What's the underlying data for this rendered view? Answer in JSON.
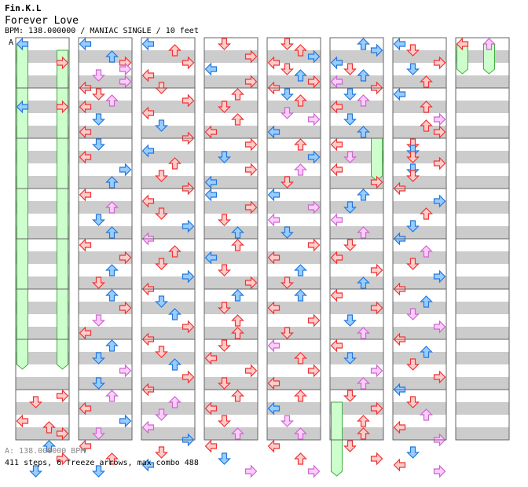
{
  "header": {
    "artist": "Fin.K.L",
    "title": "Forever Love",
    "info": "BPM: 138.000000 / MANIAC SINGLE / 10 feet"
  },
  "bpm_marker": "A",
  "footer": {
    "bpm_line": "A: 138.000000 BPM",
    "stats": "411 steps, 6 freeze arrows, max combo 488"
  },
  "colors": {
    "band_dark": "#cccccc",
    "band_light": "#ffffff",
    "red_fill": "#ffcccc",
    "red_line": "#ee3333",
    "blue_fill": "#99ccff",
    "blue_line": "#2277dd",
    "pink_fill": "#ffccff",
    "pink_line": "#cc66cc",
    "freeze_fill": "#ccffcc",
    "freeze_line": "#44aa44"
  },
  "arrows": [
    [
      0,
      1,
      0,
      "b"
    ],
    [
      0,
      4,
      3,
      "r"
    ],
    [
      0,
      11,
      0,
      "b"
    ],
    [
      0,
      11,
      3,
      "r"
    ],
    [
      0,
      57,
      3,
      "r"
    ],
    [
      0,
      58,
      1,
      "r"
    ],
    [
      0,
      61,
      0,
      "r"
    ],
    [
      0,
      62,
      2,
      "r"
    ],
    [
      0,
      63,
      3,
      "r"
    ],
    [
      0,
      65,
      2,
      "b"
    ],
    [
      0,
      67,
      3,
      "r"
    ],
    [
      0,
      69,
      1,
      "b"
    ],
    [
      1,
      1,
      0,
      "b"
    ],
    [
      1,
      3,
      2,
      "b"
    ],
    [
      1,
      4,
      3,
      "r"
    ],
    [
      1,
      5,
      3,
      "p"
    ],
    [
      1,
      6,
      1,
      "p"
    ],
    [
      1,
      7,
      3,
      "p"
    ],
    [
      1,
      8,
      0,
      "r"
    ],
    [
      1,
      9,
      1,
      "r"
    ],
    [
      1,
      10,
      2,
      "p"
    ],
    [
      1,
      11,
      0,
      "r"
    ],
    [
      1,
      13,
      1,
      "b"
    ],
    [
      1,
      15,
      0,
      "r"
    ],
    [
      1,
      17,
      1,
      "b"
    ],
    [
      1,
      19,
      0,
      "r"
    ],
    [
      1,
      21,
      3,
      "b"
    ],
    [
      1,
      23,
      2,
      "b"
    ],
    [
      1,
      25,
      0,
      "r"
    ],
    [
      1,
      27,
      2,
      "p"
    ],
    [
      1,
      29,
      1,
      "b"
    ],
    [
      1,
      31,
      2,
      "b"
    ],
    [
      1,
      33,
      0,
      "r"
    ],
    [
      1,
      35,
      3,
      "r"
    ],
    [
      1,
      37,
      2,
      "b"
    ],
    [
      1,
      39,
      1,
      "r"
    ],
    [
      1,
      41,
      2,
      "b"
    ],
    [
      1,
      43,
      3,
      "r"
    ],
    [
      1,
      45,
      1,
      "p"
    ],
    [
      1,
      47,
      0,
      "r"
    ],
    [
      1,
      49,
      2,
      "b"
    ],
    [
      1,
      51,
      1,
      "b"
    ],
    [
      1,
      53,
      3,
      "p"
    ],
    [
      1,
      55,
      1,
      "b"
    ],
    [
      1,
      57,
      2,
      "p"
    ],
    [
      1,
      59,
      0,
      "r"
    ],
    [
      1,
      61,
      3,
      "b"
    ],
    [
      1,
      63,
      1,
      "p"
    ],
    [
      1,
      65,
      0,
      "r"
    ],
    [
      1,
      67,
      2,
      "r"
    ],
    [
      1,
      69,
      1,
      "b"
    ],
    [
      2,
      1,
      0,
      "b"
    ],
    [
      2,
      2,
      2,
      "r"
    ],
    [
      2,
      4,
      3,
      "r"
    ],
    [
      2,
      6,
      0,
      "r"
    ],
    [
      2,
      8,
      1,
      "r"
    ],
    [
      2,
      10,
      3,
      "r"
    ],
    [
      2,
      12,
      0,
      "r"
    ],
    [
      2,
      14,
      1,
      "b"
    ],
    [
      2,
      16,
      3,
      "r"
    ],
    [
      2,
      18,
      0,
      "b"
    ],
    [
      2,
      20,
      2,
      "r"
    ],
    [
      2,
      22,
      1,
      "r"
    ],
    [
      2,
      24,
      3,
      "r"
    ],
    [
      2,
      26,
      0,
      "r"
    ],
    [
      2,
      28,
      1,
      "r"
    ],
    [
      2,
      30,
      3,
      "b"
    ],
    [
      2,
      32,
      0,
      "p"
    ],
    [
      2,
      34,
      2,
      "r"
    ],
    [
      2,
      36,
      1,
      "r"
    ],
    [
      2,
      38,
      3,
      "b"
    ],
    [
      2,
      40,
      0,
      "r"
    ],
    [
      2,
      42,
      1,
      "b"
    ],
    [
      2,
      44,
      2,
      "b"
    ],
    [
      2,
      46,
      3,
      "r"
    ],
    [
      2,
      48,
      0,
      "r"
    ],
    [
      2,
      50,
      1,
      "r"
    ],
    [
      2,
      52,
      2,
      "b"
    ],
    [
      2,
      54,
      3,
      "r"
    ],
    [
      2,
      56,
      0,
      "r"
    ],
    [
      2,
      58,
      2,
      "p"
    ],
    [
      2,
      60,
      1,
      "p"
    ],
    [
      2,
      62,
      0,
      "p"
    ],
    [
      2,
      64,
      3,
      "b"
    ],
    [
      2,
      66,
      1,
      "r"
    ],
    [
      2,
      68,
      0,
      "b"
    ],
    [
      3,
      1,
      1,
      "r"
    ],
    [
      3,
      3,
      3,
      "r"
    ],
    [
      3,
      5,
      0,
      "b"
    ],
    [
      3,
      7,
      3,
      "r"
    ],
    [
      3,
      9,
      2,
      "r"
    ],
    [
      3,
      11,
      1,
      "r"
    ],
    [
      3,
      13,
      2,
      "r"
    ],
    [
      3,
      15,
      0,
      "r"
    ],
    [
      3,
      17,
      3,
      "r"
    ],
    [
      3,
      19,
      1,
      "b"
    ],
    [
      3,
      21,
      3,
      "r"
    ],
    [
      3,
      23,
      0,
      "b"
    ],
    [
      3,
      25,
      0,
      "b"
    ],
    [
      3,
      27,
      3,
      "r"
    ],
    [
      3,
      29,
      1,
      "r"
    ],
    [
      3,
      31,
      2,
      "b"
    ],
    [
      3,
      33,
      2,
      "r"
    ],
    [
      3,
      35,
      0,
      "b"
    ],
    [
      3,
      37,
      1,
      "r"
    ],
    [
      3,
      39,
      3,
      "r"
    ],
    [
      3,
      41,
      2,
      "b"
    ],
    [
      3,
      43,
      1,
      "r"
    ],
    [
      3,
      45,
      2,
      "r"
    ],
    [
      3,
      47,
      2,
      "r"
    ],
    [
      3,
      49,
      1,
      "r"
    ],
    [
      3,
      51,
      0,
      "r"
    ],
    [
      3,
      53,
      3,
      "r"
    ],
    [
      3,
      55,
      1,
      "r"
    ],
    [
      3,
      57,
      2,
      "r"
    ],
    [
      3,
      59,
      0,
      "r"
    ],
    [
      3,
      61,
      1,
      "r"
    ],
    [
      3,
      63,
      2,
      "p"
    ],
    [
      3,
      65,
      0,
      "r"
    ],
    [
      3,
      67,
      1,
      "b"
    ],
    [
      3,
      69,
      3,
      "p"
    ],
    [
      4,
      1,
      1,
      "r"
    ],
    [
      4,
      2,
      2,
      "r"
    ],
    [
      4,
      3,
      3,
      "b"
    ],
    [
      4,
      4,
      0,
      "r"
    ],
    [
      4,
      5,
      1,
      "r"
    ],
    [
      4,
      6,
      2,
      "b"
    ],
    [
      4,
      7,
      3,
      "r"
    ],
    [
      4,
      8,
      0,
      "r"
    ],
    [
      4,
      9,
      1,
      "b"
    ],
    [
      4,
      10,
      2,
      "r"
    ],
    [
      4,
      12,
      1,
      "p"
    ],
    [
      4,
      13,
      3,
      "p"
    ],
    [
      4,
      15,
      0,
      "b"
    ],
    [
      4,
      17,
      2,
      "r"
    ],
    [
      4,
      19,
      3,
      "b"
    ],
    [
      4,
      21,
      2,
      "p"
    ],
    [
      4,
      23,
      1,
      "r"
    ],
    [
      4,
      25,
      0,
      "b"
    ],
    [
      4,
      27,
      3,
      "p"
    ],
    [
      4,
      29,
      0,
      "p"
    ],
    [
      4,
      31,
      1,
      "b"
    ],
    [
      4,
      33,
      3,
      "r"
    ],
    [
      4,
      35,
      0,
      "r"
    ],
    [
      4,
      37,
      2,
      "b"
    ],
    [
      4,
      39,
      1,
      "r"
    ],
    [
      4,
      41,
      2,
      "b"
    ],
    [
      4,
      43,
      0,
      "r"
    ],
    [
      4,
      45,
      3,
      "r"
    ],
    [
      4,
      47,
      1,
      "r"
    ],
    [
      4,
      49,
      0,
      "p"
    ],
    [
      4,
      51,
      2,
      "r"
    ],
    [
      4,
      53,
      3,
      "r"
    ],
    [
      4,
      55,
      0,
      "r"
    ],
    [
      4,
      57,
      2,
      "r"
    ],
    [
      4,
      59,
      0,
      "b"
    ],
    [
      4,
      61,
      1,
      "p"
    ],
    [
      4,
      63,
      2,
      "p"
    ],
    [
      4,
      65,
      0,
      "r"
    ],
    [
      4,
      67,
      2,
      "r"
    ],
    [
      4,
      69,
      3,
      "p"
    ],
    [
      5,
      1,
      2,
      "b"
    ],
    [
      5,
      2,
      3,
      "b"
    ],
    [
      5,
      4,
      0,
      "b"
    ],
    [
      5,
      5,
      1,
      "r"
    ],
    [
      5,
      6,
      2,
      "b"
    ],
    [
      5,
      7,
      0,
      "p"
    ],
    [
      5,
      8,
      3,
      "r"
    ],
    [
      5,
      9,
      1,
      "b"
    ],
    [
      5,
      10,
      2,
      "p"
    ],
    [
      5,
      11,
      0,
      "r"
    ],
    [
      5,
      13,
      1,
      "b"
    ],
    [
      5,
      15,
      2,
      "b"
    ],
    [
      5,
      17,
      0,
      "r"
    ],
    [
      5,
      19,
      1,
      "p"
    ],
    [
      5,
      21,
      0,
      "r"
    ],
    [
      5,
      23,
      3,
      "r"
    ],
    [
      5,
      25,
      2,
      "b"
    ],
    [
      5,
      27,
      1,
      "b"
    ],
    [
      5,
      29,
      0,
      "p"
    ],
    [
      5,
      31,
      2,
      "p"
    ],
    [
      5,
      33,
      1,
      "r"
    ],
    [
      5,
      35,
      0,
      "r"
    ],
    [
      5,
      37,
      3,
      "r"
    ],
    [
      5,
      39,
      2,
      "b"
    ],
    [
      5,
      41,
      0,
      "r"
    ],
    [
      5,
      43,
      3,
      "r"
    ],
    [
      5,
      45,
      1,
      "b"
    ],
    [
      5,
      47,
      2,
      "p"
    ],
    [
      5,
      49,
      0,
      "r"
    ],
    [
      5,
      51,
      1,
      "b"
    ],
    [
      5,
      53,
      3,
      "p"
    ],
    [
      5,
      55,
      2,
      "p"
    ],
    [
      5,
      57,
      1,
      "r"
    ],
    [
      5,
      59,
      3,
      "r"
    ],
    [
      5,
      61,
      2,
      "r"
    ],
    [
      5,
      63,
      2,
      "r"
    ],
    [
      5,
      65,
      1,
      "r"
    ],
    [
      5,
      67,
      3,
      "r"
    ],
    [
      6,
      1,
      0,
      "b"
    ],
    [
      6,
      2,
      1,
      "r"
    ],
    [
      6,
      4,
      3,
      "r"
    ],
    [
      6,
      5,
      1,
      "b"
    ],
    [
      6,
      7,
      2,
      "r"
    ],
    [
      6,
      9,
      0,
      "b"
    ],
    [
      6,
      11,
      2,
      "r"
    ],
    [
      6,
      13,
      3,
      "p"
    ],
    [
      6,
      14,
      2,
      "r"
    ],
    [
      6,
      15,
      3,
      "r"
    ],
    [
      6,
      17,
      1,
      "r"
    ],
    [
      6,
      18,
      1,
      "b"
    ],
    [
      6,
      19,
      1,
      "r"
    ],
    [
      6,
      20,
      3,
      "r"
    ],
    [
      6,
      21,
      1,
      "b"
    ],
    [
      6,
      22,
      1,
      "r"
    ],
    [
      6,
      24,
      0,
      "r"
    ],
    [
      6,
      26,
      3,
      "b"
    ],
    [
      6,
      28,
      2,
      "r"
    ],
    [
      6,
      30,
      1,
      "b"
    ],
    [
      6,
      32,
      0,
      "b"
    ],
    [
      6,
      34,
      2,
      "p"
    ],
    [
      6,
      36,
      1,
      "r"
    ],
    [
      6,
      38,
      3,
      "b"
    ],
    [
      6,
      40,
      0,
      "r"
    ],
    [
      6,
      42,
      2,
      "b"
    ],
    [
      6,
      44,
      1,
      "p"
    ],
    [
      6,
      46,
      3,
      "p"
    ],
    [
      6,
      48,
      0,
      "r"
    ],
    [
      6,
      50,
      2,
      "b"
    ],
    [
      6,
      52,
      1,
      "r"
    ],
    [
      6,
      54,
      3,
      "r"
    ],
    [
      6,
      56,
      0,
      "b"
    ],
    [
      6,
      58,
      1,
      "r"
    ],
    [
      6,
      60,
      2,
      "p"
    ],
    [
      6,
      62,
      0,
      "r"
    ],
    [
      6,
      64,
      3,
      "p"
    ],
    [
      6,
      66,
      1,
      "b"
    ],
    [
      6,
      68,
      0,
      "r"
    ],
    [
      6,
      69,
      3,
      "p"
    ],
    [
      7,
      1,
      0,
      "r"
    ],
    [
      7,
      1,
      2,
      "p"
    ]
  ],
  "freezes": [
    [
      0,
      1,
      52,
      0
    ],
    [
      0,
      2,
      52,
      3
    ],
    [
      5,
      16,
      22,
      3
    ],
    [
      5,
      58,
      69,
      0
    ],
    [
      7,
      1,
      5,
      0
    ],
    [
      7,
      1,
      5,
      2
    ]
  ]
}
